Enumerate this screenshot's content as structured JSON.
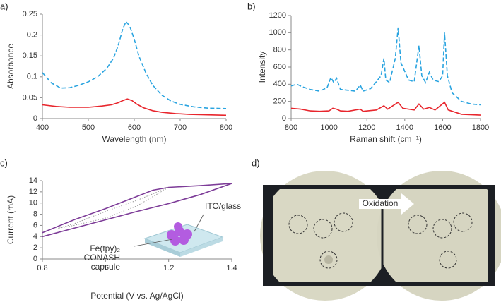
{
  "chart_data": [
    {
      "type": "line",
      "panel": "a)",
      "xlabel": "Wavelength (nm)",
      "ylabel": "Absorbance",
      "xlim": [
        400,
        800
      ],
      "xticks": [
        400,
        500,
        600,
        700,
        800
      ],
      "ylim": [
        0,
        0.25
      ],
      "yticks": [
        0,
        0.05,
        0.1,
        0.15,
        0.2,
        0.25
      ],
      "series": [
        {
          "color": "#2aa4e0",
          "dash": "dashed",
          "x": [
            400,
            420,
            440,
            460,
            480,
            500,
            520,
            540,
            555,
            565,
            575,
            582,
            590,
            600,
            610,
            625,
            640,
            660,
            680,
            700,
            730,
            760,
            800
          ],
          "values": [
            0.11,
            0.085,
            0.073,
            0.074,
            0.08,
            0.088,
            0.1,
            0.12,
            0.145,
            0.175,
            0.215,
            0.232,
            0.222,
            0.19,
            0.15,
            0.11,
            0.08,
            0.056,
            0.042,
            0.034,
            0.028,
            0.025,
            0.024
          ]
        },
        {
          "color": "#e8262d",
          "dash": null,
          "x": [
            400,
            430,
            460,
            500,
            530,
            550,
            565,
            575,
            585,
            595,
            605,
            620,
            640,
            660,
            690,
            720,
            760,
            800
          ],
          "values": [
            0.033,
            0.029,
            0.027,
            0.027,
            0.03,
            0.033,
            0.038,
            0.043,
            0.047,
            0.043,
            0.035,
            0.026,
            0.019,
            0.015,
            0.012,
            0.01,
            0.009,
            0.008
          ]
        }
      ]
    },
    {
      "type": "line",
      "panel": "b)",
      "xlabel": "Raman shift (cm⁻¹)",
      "ylabel": "Intensity",
      "xlim": [
        800,
        1800
      ],
      "xticks": [
        800,
        1000,
        1200,
        1400,
        1600,
        1800
      ],
      "ylim": [
        0,
        1200
      ],
      "yticks": [
        0,
        200,
        400,
        600,
        800,
        1000,
        1200
      ],
      "series": [
        {
          "color": "#2aa4e0",
          "dash": "dashed",
          "x": [
            800,
            815,
            830,
            860,
            900,
            950,
            990,
            1010,
            1025,
            1040,
            1060,
            1100,
            1140,
            1165,
            1180,
            1220,
            1250,
            1275,
            1290,
            1300,
            1320,
            1350,
            1365,
            1380,
            1420,
            1450,
            1475,
            1490,
            1510,
            1530,
            1550,
            1580,
            1600,
            1610,
            1625,
            1650,
            1700,
            1750,
            1800
          ],
          "values": [
            380,
            390,
            400,
            370,
            340,
            320,
            360,
            480,
            420,
            470,
            340,
            330,
            320,
            390,
            320,
            350,
            430,
            500,
            700,
            450,
            420,
            700,
            1060,
            650,
            450,
            430,
            850,
            500,
            420,
            540,
            450,
            430,
            500,
            1000,
            500,
            300,
            200,
            170,
            160
          ]
        },
        {
          "color": "#e8262d",
          "dash": null,
          "x": [
            800,
            850,
            900,
            950,
            1000,
            1020,
            1040,
            1060,
            1100,
            1165,
            1180,
            1250,
            1290,
            1310,
            1365,
            1390,
            1450,
            1475,
            1500,
            1530,
            1560,
            1610,
            1630,
            1700,
            1800
          ],
          "values": [
            120,
            110,
            90,
            85,
            90,
            120,
            110,
            90,
            85,
            110,
            85,
            100,
            150,
            110,
            190,
            120,
            100,
            170,
            110,
            130,
            100,
            190,
            100,
            50,
            40
          ]
        }
      ]
    },
    {
      "type": "line",
      "panel": "c)",
      "xlabel": "Potential (V vs. Ag/AgCl)",
      "ylabel": "Current (mA)",
      "xlim": [
        0.8,
        1.4
      ],
      "xticks": [
        0.8,
        1,
        1.2,
        1.4
      ],
      "ylim": [
        0,
        14
      ],
      "yticks": [
        0,
        2,
        4,
        6,
        8,
        10,
        12,
        14
      ],
      "annotations": [
        "ITO/glass",
        "Fe(tpy)₂",
        "CONASH",
        "capsule"
      ],
      "series": [
        {
          "color": "#7d3c98",
          "dash": null,
          "x": [
            0.8,
            0.9,
            1.0,
            1.1,
            1.15,
            1.2,
            1.3,
            1.4,
            1.35,
            1.3,
            1.2,
            1.1,
            1.0,
            0.9,
            0.8
          ],
          "values": [
            4.7,
            7,
            9,
            11.2,
            12.3,
            12.8,
            13.1,
            13.5,
            12.5,
            11.5,
            9.9,
            8.5,
            7,
            5.5,
            4
          ]
        },
        {
          "color": "#999999",
          "dash": "dotted",
          "x": [
            0.85,
            0.9,
            1.0,
            1.1,
            1.2,
            1.1,
            1.0,
            0.9,
            0.85
          ],
          "values": [
            5.5,
            6.3,
            8.5,
            10.5,
            12.8,
            9.5,
            7.3,
            6,
            5.5
          ]
        }
      ]
    }
  ],
  "photo": {
    "panel": "d)",
    "annotation": "Oxidation"
  }
}
